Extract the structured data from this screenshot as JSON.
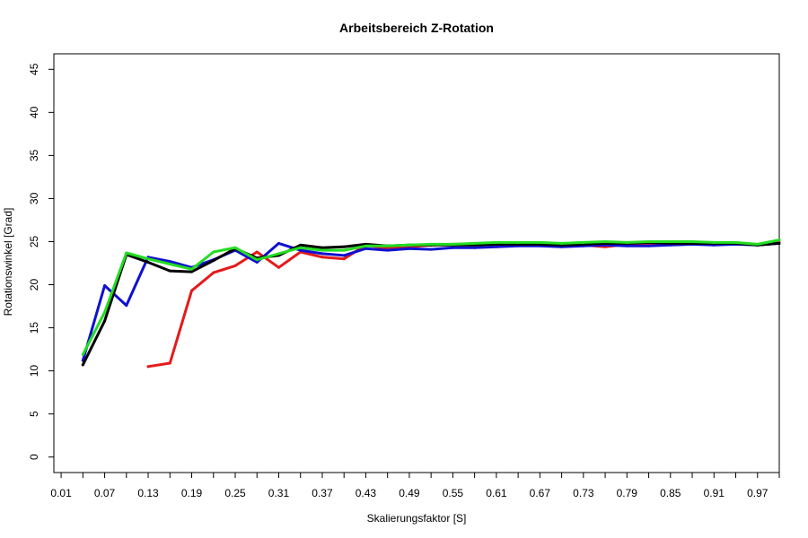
{
  "chart_data": {
    "type": "line",
    "title": "Arbeitsbereich Z-Rotation",
    "xlabel": "Skalierungsfaktor [S]",
    "ylabel": "Rotationswinkel [Grad]",
    "xlim": [
      0.0,
      1.0
    ],
    "ylim": [
      -1.8,
      46.8
    ],
    "grid": false,
    "x_ticks": [
      0.01,
      0.04,
      0.07,
      0.1,
      0.13,
      0.16,
      0.19,
      0.22,
      0.25,
      0.28,
      0.31,
      0.34,
      0.37,
      0.4,
      0.43,
      0.46,
      0.49,
      0.52,
      0.55,
      0.58,
      0.61,
      0.64,
      0.67,
      0.7,
      0.73,
      0.76,
      0.79,
      0.82,
      0.85,
      0.88,
      0.91,
      0.94,
      0.97,
      1.0
    ],
    "x_tick_labels": [
      "0.01",
      "0.07",
      "0.13",
      "0.19",
      "0.25",
      "0.31",
      "0.37",
      "0.43",
      "0.49",
      "0.55",
      "0.61",
      "0.67",
      "0.73",
      "0.79",
      "0.85",
      "0.91",
      "0.97"
    ],
    "x_tick_label_values": [
      0.01,
      0.07,
      0.13,
      0.19,
      0.25,
      0.31,
      0.37,
      0.43,
      0.49,
      0.55,
      0.61,
      0.67,
      0.73,
      0.79,
      0.85,
      0.91,
      0.97
    ],
    "y_ticks": [
      0,
      5,
      10,
      15,
      20,
      25,
      30,
      35,
      40,
      45
    ],
    "y_tick_labels": [
      "0",
      "5",
      "10",
      "15",
      "20",
      "25",
      "30",
      "35",
      "40",
      "45"
    ],
    "series": [
      {
        "color": "#e41a1c",
        "x": [
          0.13,
          0.16,
          0.19,
          0.22,
          0.25,
          0.28,
          0.31,
          0.34,
          0.37,
          0.4,
          0.43,
          0.46,
          0.49,
          0.52,
          0.55,
          0.58,
          0.61,
          0.64,
          0.67,
          0.7,
          0.73,
          0.76,
          0.79,
          0.82,
          0.85,
          0.88,
          0.91,
          0.94,
          0.97,
          1.0
        ],
        "y": [
          10.5,
          10.9,
          19.3,
          21.4,
          22.2,
          23.8,
          22.0,
          23.8,
          23.2,
          23.0,
          24.6,
          24.2,
          24.4,
          24.6,
          24.7,
          24.7,
          24.8,
          24.8,
          24.8,
          24.6,
          24.6,
          24.4,
          24.7,
          24.8,
          24.8,
          24.9,
          24.8,
          24.8,
          24.6,
          24.9
        ]
      },
      {
        "color": "#1010d0",
        "x": [
          0.04,
          0.07,
          0.1,
          0.13,
          0.16,
          0.19,
          0.22,
          0.25,
          0.28,
          0.31,
          0.34,
          0.37,
          0.4,
          0.43,
          0.46,
          0.49,
          0.52,
          0.55,
          0.58,
          0.61,
          0.64,
          0.67,
          0.7,
          0.73,
          0.76,
          0.79,
          0.82,
          0.85,
          0.88,
          0.91,
          0.94,
          0.97,
          1.0
        ],
        "y": [
          11.2,
          19.9,
          17.6,
          23.2,
          22.7,
          22.0,
          22.9,
          24.0,
          22.6,
          24.8,
          24.0,
          23.6,
          23.4,
          24.2,
          24.0,
          24.2,
          24.1,
          24.3,
          24.3,
          24.4,
          24.5,
          24.5,
          24.4,
          24.5,
          24.6,
          24.5,
          24.5,
          24.6,
          24.7,
          24.6,
          24.7,
          24.6,
          24.8
        ]
      },
      {
        "color": "#000000",
        "x": [
          0.04,
          0.07,
          0.1,
          0.13,
          0.16,
          0.19,
          0.22,
          0.25,
          0.28,
          0.31,
          0.34,
          0.37,
          0.4,
          0.43,
          0.46,
          0.49,
          0.52,
          0.55,
          0.58,
          0.61,
          0.64,
          0.67,
          0.7,
          0.73,
          0.76,
          0.79,
          0.82,
          0.85,
          0.88,
          0.91,
          0.94,
          0.97,
          1.0
        ],
        "y": [
          10.7,
          15.8,
          23.5,
          22.6,
          21.6,
          21.5,
          22.8,
          24.2,
          23.1,
          23.4,
          24.6,
          24.3,
          24.4,
          24.7,
          24.5,
          24.6,
          24.6,
          24.6,
          24.6,
          24.7,
          24.7,
          24.7,
          24.6,
          24.7,
          24.8,
          24.8,
          24.9,
          24.8,
          24.8,
          24.8,
          24.8,
          24.6,
          24.8
        ]
      },
      {
        "color": "#22dd22",
        "x": [
          0.04,
          0.07,
          0.1,
          0.13,
          0.16,
          0.19,
          0.22,
          0.25,
          0.28,
          0.31,
          0.34,
          0.37,
          0.4,
          0.43,
          0.46,
          0.49,
          0.52,
          0.55,
          0.58,
          0.61,
          0.64,
          0.67,
          0.7,
          0.73,
          0.76,
          0.79,
          0.82,
          0.85,
          0.88,
          0.91,
          0.94,
          0.97,
          1.0
        ],
        "y": [
          11.9,
          16.8,
          23.7,
          23.0,
          22.4,
          21.8,
          23.8,
          24.3,
          22.9,
          23.6,
          24.3,
          24.0,
          24.0,
          24.5,
          24.5,
          24.6,
          24.7,
          24.7,
          24.8,
          24.9,
          24.9,
          24.9,
          24.8,
          24.9,
          25.0,
          24.9,
          25.0,
          25.0,
          25.0,
          24.9,
          24.9,
          24.7,
          25.2
        ]
      }
    ]
  }
}
